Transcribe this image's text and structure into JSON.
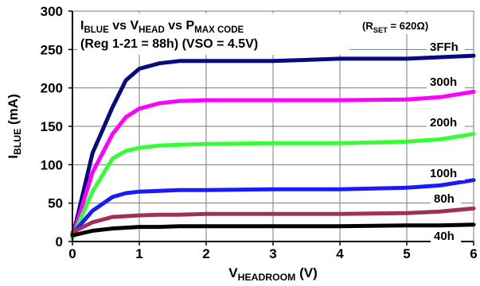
{
  "chart_data": {
    "type": "line",
    "title_parts": [
      {
        "text": "I",
        "sub": false
      },
      {
        "text": "BLUE",
        "sub": true
      },
      {
        "text": " vs V",
        "sub": false
      },
      {
        "text": "HEAD",
        "sub": true
      },
      {
        "text": " vs P",
        "sub": false
      },
      {
        "text": "MAX CODE",
        "sub": true
      }
    ],
    "subtitle": "(Reg 1-21 = 88h) (VSO = 4.5V)",
    "annotation_parts": [
      {
        "text": "(R",
        "sub": false
      },
      {
        "text": "SET",
        "sub": true
      },
      {
        "text": " = 620Ω)",
        "sub": false
      }
    ],
    "xlabel_parts": [
      {
        "text": "V",
        "sub": false
      },
      {
        "text": "HEADROOM",
        "sub": true
      },
      {
        "text": " (V)",
        "sub": false
      }
    ],
    "ylabel_parts": [
      {
        "text": "I",
        "sub": false
      },
      {
        "text": "BLUE",
        "sub": true
      },
      {
        "text": " (mA)",
        "sub": false
      }
    ],
    "xlim": [
      0,
      6
    ],
    "ylim": [
      0,
      300
    ],
    "xticks": [
      "0",
      "1",
      "2",
      "3",
      "4",
      "5",
      "6"
    ],
    "yticks": [
      "0",
      "50",
      "100",
      "150",
      "200",
      "250",
      "300"
    ],
    "grid": true,
    "series": [
      {
        "name": "3FFh",
        "color": "#0a0a80",
        "x": [
          0,
          0.3,
          0.6,
          0.8,
          1.0,
          1.3,
          1.6,
          2.0,
          3.0,
          4.0,
          5.0,
          5.5,
          6.0
        ],
        "y": [
          5,
          115,
          175,
          210,
          225,
          232,
          235,
          235,
          235,
          238,
          238,
          240,
          242
        ]
      },
      {
        "name": "300h",
        "color": "#ff00ff",
        "x": [
          0,
          0.3,
          0.6,
          0.8,
          1.0,
          1.3,
          1.6,
          2.0,
          3.0,
          4.0,
          5.0,
          5.5,
          6.0
        ],
        "y": [
          5,
          90,
          140,
          162,
          173,
          180,
          183,
          184,
          184,
          184,
          185,
          188,
          195
        ]
      },
      {
        "name": "200h",
        "color": "#33ff33",
        "x": [
          0,
          0.3,
          0.6,
          0.8,
          1.0,
          1.3,
          1.6,
          2.0,
          3.0,
          4.0,
          5.0,
          5.5,
          6.0
        ],
        "y": [
          5,
          65,
          108,
          118,
          122,
          125,
          126,
          127,
          128,
          128,
          130,
          133,
          140
        ]
      },
      {
        "name": "100h",
        "color": "#1a1aff",
        "x": [
          0,
          0.3,
          0.6,
          0.8,
          1.0,
          1.3,
          1.6,
          2.0,
          3.0,
          4.0,
          5.0,
          5.5,
          6.0
        ],
        "y": [
          10,
          40,
          58,
          63,
          65,
          66,
          67,
          67,
          68,
          68,
          70,
          73,
          80
        ]
      },
      {
        "name": "80h",
        "color": "#a0305a",
        "x": [
          0,
          0.3,
          0.6,
          0.8,
          1.0,
          1.3,
          1.6,
          2.0,
          3.0,
          4.0,
          5.0,
          5.5,
          6.0
        ],
        "y": [
          12,
          25,
          32,
          33,
          34,
          35,
          35,
          36,
          36,
          36,
          37,
          39,
          43
        ]
      },
      {
        "name": "40h",
        "color": "#000000",
        "x": [
          0,
          0.3,
          0.6,
          0.8,
          1.0,
          1.3,
          1.6,
          2.0,
          3.0,
          4.0,
          5.0,
          5.5,
          6.0
        ],
        "y": [
          8,
          14,
          17,
          18,
          19,
          19,
          20,
          20,
          20,
          20,
          21,
          21,
          22
        ]
      }
    ]
  }
}
